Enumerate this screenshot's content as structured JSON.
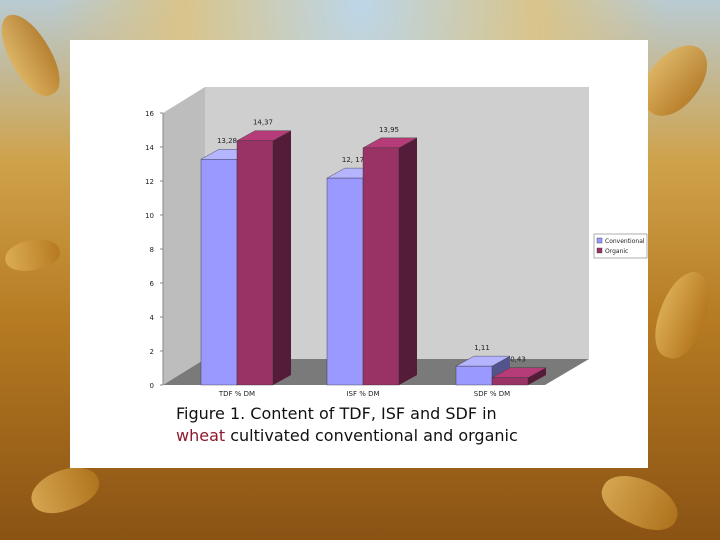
{
  "chart_data": {
    "type": "bar",
    "categories": [
      "TDF % DM",
      "ISF % DM",
      "SDF % DM"
    ],
    "series": [
      {
        "name": "Conventional",
        "values": [
          13.28,
          12.17,
          1.11
        ],
        "labels": [
          "13,28",
          "12, 17",
          "1,11"
        ],
        "color": "#9999ff"
      },
      {
        "name": "Organic",
        "values": [
          14.37,
          13.95,
          0.43
        ],
        "labels": [
          "14,37",
          "13,95",
          "0,43"
        ],
        "color": "#993366"
      }
    ],
    "ylim": [
      0,
      16
    ],
    "yticks": [
      "0",
      "2",
      "4",
      "6",
      "8",
      "10",
      "12",
      "14",
      "16"
    ],
    "legend_position": "right",
    "grid": false
  },
  "caption": {
    "line1": "Figure 1. Content of TDF, ISF and SDF in",
    "highlight": "wheat",
    "line2_rest": " cultivated conventional and organic",
    "highlight_color": "#8b1a2b"
  }
}
